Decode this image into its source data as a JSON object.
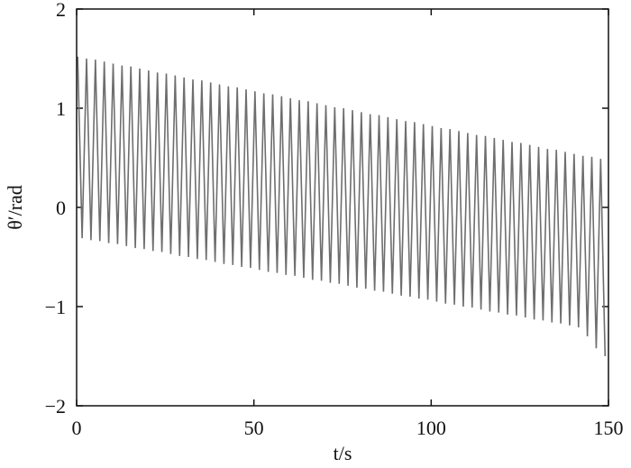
{
  "chart_data": {
    "type": "line",
    "x_label": "t/s",
    "y_label": "θ′/rad",
    "xlim": [
      0,
      150
    ],
    "xticks": [
      0,
      50,
      100,
      150
    ],
    "ylim": [
      -2,
      2
    ],
    "yticks": [
      {
        "value": -2,
        "label": "−2"
      },
      {
        "value": -1,
        "label": "−1"
      },
      0,
      1,
      2
    ],
    "x": [
      0.3,
      1.55,
      2.8,
      4.05,
      5.3,
      6.55,
      7.8,
      9.05,
      10.3,
      11.55,
      12.8,
      14.05,
      15.3,
      16.55,
      17.8,
      19.05,
      20.3,
      21.55,
      22.8,
      24.05,
      25.3,
      26.55,
      27.8,
      29.05,
      30.3,
      31.55,
      32.8,
      34.05,
      35.3,
      36.55,
      37.8,
      39.05,
      40.3,
      41.55,
      42.8,
      44.05,
      45.3,
      46.55,
      47.8,
      49.05,
      50.3,
      51.55,
      52.8,
      54.05,
      55.3,
      56.55,
      57.8,
      59.05,
      60.3,
      61.55,
      62.8,
      64.05,
      65.3,
      66.55,
      67.8,
      69.05,
      70.3,
      71.55,
      72.8,
      74.05,
      75.3,
      76.55,
      77.8,
      79.05,
      80.3,
      81.55,
      82.8,
      84.05,
      85.3,
      86.55,
      87.8,
      89.05,
      90.3,
      91.55,
      92.8,
      94.05,
      95.3,
      96.55,
      97.8,
      99.05,
      100.3,
      101.55,
      102.8,
      104.05,
      105.3,
      106.55,
      107.8,
      109.05,
      110.3,
      111.55,
      112.8,
      114.05,
      115.3,
      116.55,
      117.8,
      119.05,
      120.3,
      121.55,
      122.8,
      124.05,
      125.3,
      126.55,
      127.8,
      129.05,
      130.3,
      131.55,
      132.8,
      134.05,
      135.3,
      136.55,
      137.8,
      139.05,
      140.3,
      141.55,
      142.8,
      144.05,
      145.3,
      146.55,
      147.8,
      149.05
    ],
    "series": [
      {
        "color": "#6e6e6e",
        "values": [
          1.52,
          -0.31,
          1.5,
          -0.33,
          1.49,
          -0.34,
          1.47,
          -0.36,
          1.45,
          -0.37,
          1.43,
          -0.39,
          1.42,
          -0.41,
          1.4,
          -0.42,
          1.38,
          -0.44,
          1.36,
          -0.45,
          1.35,
          -0.47,
          1.33,
          -0.49,
          1.31,
          -0.5,
          1.29,
          -0.52,
          1.28,
          -0.53,
          1.26,
          -0.55,
          1.24,
          -0.57,
          1.22,
          -0.58,
          1.21,
          -0.6,
          1.19,
          -0.61,
          1.17,
          -0.63,
          1.15,
          -0.65,
          1.14,
          -0.66,
          1.12,
          -0.68,
          1.1,
          -0.69,
          1.08,
          -0.71,
          1.07,
          -0.73,
          1.05,
          -0.74,
          1.03,
          -0.76,
          1.01,
          -0.77,
          1.0,
          -0.79,
          0.98,
          -0.81,
          0.96,
          -0.82,
          0.94,
          -0.84,
          0.93,
          -0.85,
          0.91,
          -0.87,
          0.89,
          -0.89,
          0.87,
          -0.9,
          0.86,
          -0.92,
          0.84,
          -0.93,
          0.82,
          -0.95,
          0.8,
          -0.97,
          0.79,
          -0.98,
          0.77,
          -1.0,
          0.75,
          -1.01,
          0.73,
          -1.03,
          0.72,
          -1.05,
          0.7,
          -1.06,
          0.68,
          -1.08,
          0.66,
          -1.09,
          0.65,
          -1.11,
          0.63,
          -1.13,
          0.61,
          -1.14,
          0.59,
          -1.16,
          0.58,
          -1.17,
          0.56,
          -1.19,
          0.54,
          -1.21,
          0.52,
          -1.3,
          0.51,
          -1.42,
          0.49,
          -1.5
        ]
      }
    ]
  }
}
